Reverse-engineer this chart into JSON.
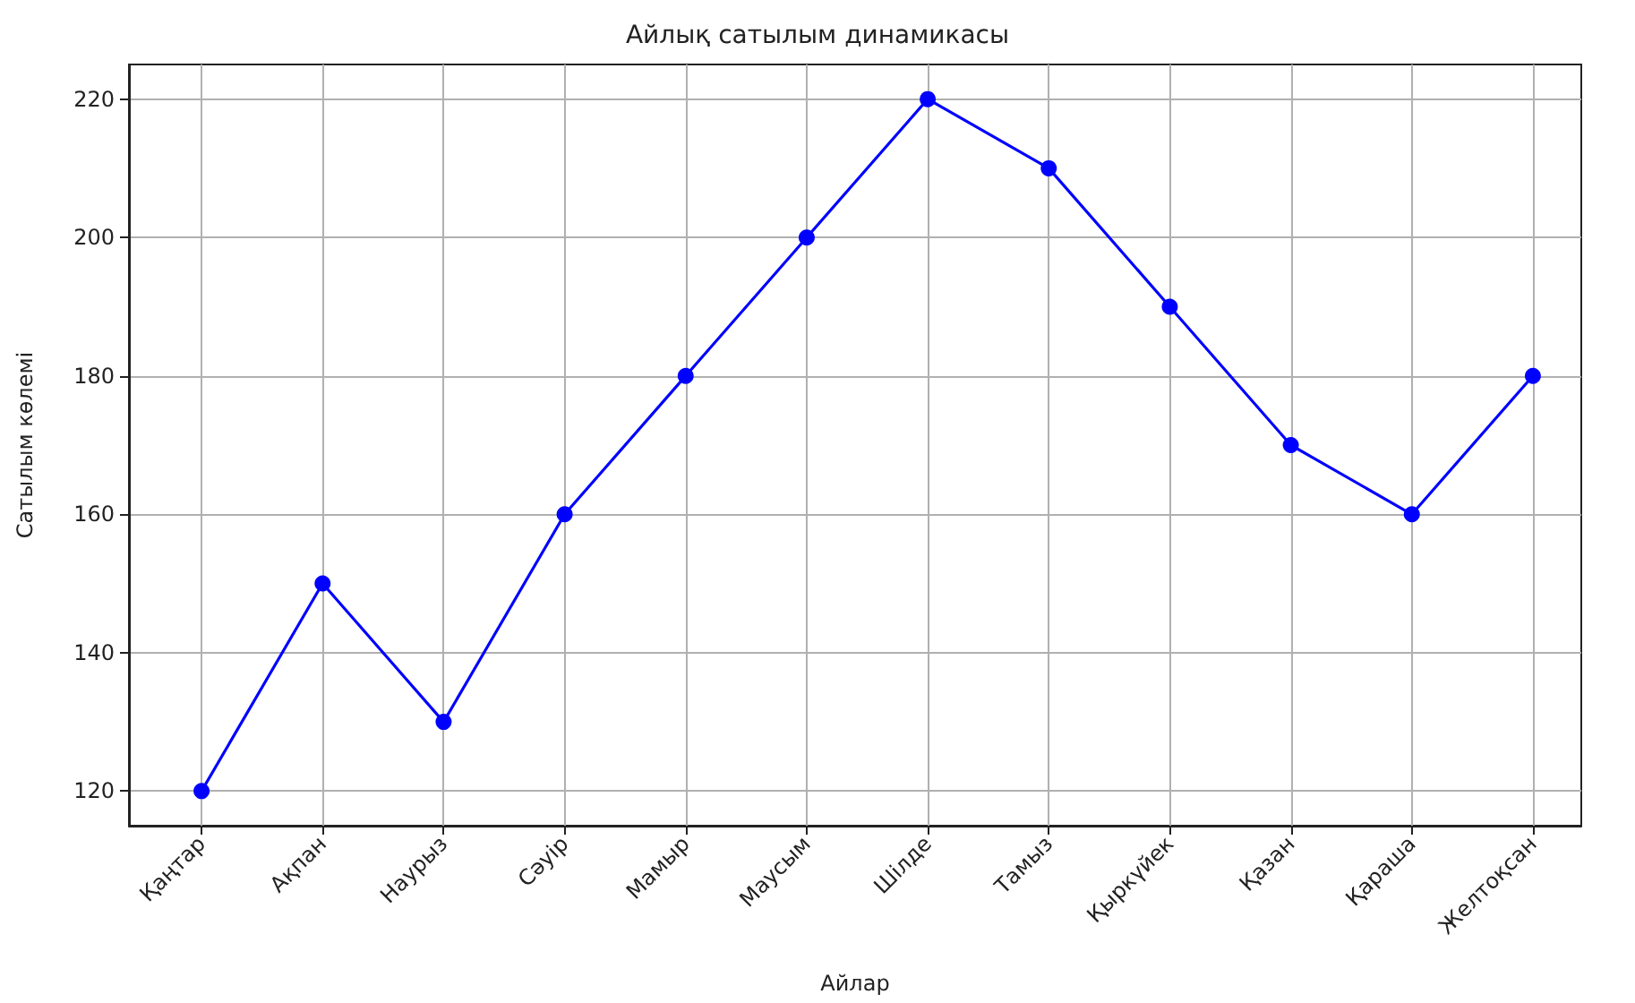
{
  "chart_data": {
    "type": "line",
    "title": "Айлық сатылым динамикасы",
    "xlabel": "Айлар",
    "ylabel": "Сатылым көлемі",
    "categories": [
      "Қаңтар",
      "Ақпан",
      "Наурыз",
      "Сәуір",
      "Мамыр",
      "Маусым",
      "Шілде",
      "Тамыз",
      "Қыркүйек",
      "Қазан",
      "Қараша",
      "Желтоқсан"
    ],
    "values": [
      120,
      150,
      130,
      160,
      180,
      200,
      220,
      210,
      190,
      170,
      160,
      180
    ],
    "color": "#0000ff",
    "ylim": [
      115,
      225
    ],
    "yticks": [
      120,
      140,
      160,
      180,
      200,
      220
    ],
    "grid": true,
    "marker": "circle",
    "line_style": "solid"
  }
}
